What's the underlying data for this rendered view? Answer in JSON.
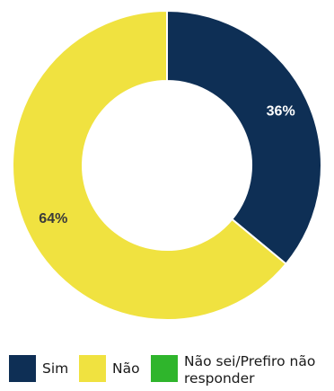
{
  "chart_data": {
    "type": "pie",
    "style": "donut",
    "categories": [
      "Sim",
      "Não",
      "Não sei/Prefiro não responder"
    ],
    "values": [
      36,
      64,
      0
    ],
    "value_labels": [
      "36%",
      "64%",
      ""
    ],
    "colors": [
      "#0e2f55",
      "#f0e240",
      "#2fb52c"
    ],
    "label_colors": [
      "#ffffff",
      "#3a3a3a",
      "#3a3a3a"
    ],
    "start_angle_deg": 0,
    "direction": "clockwise",
    "legend_position": "bottom"
  },
  "legend": {
    "items": [
      {
        "label": "Sim",
        "color": "#0e2f55"
      },
      {
        "label": "Não",
        "color": "#f0e240"
      },
      {
        "label": "Não sei/Prefiro não responder",
        "color": "#2fb52c"
      }
    ]
  }
}
